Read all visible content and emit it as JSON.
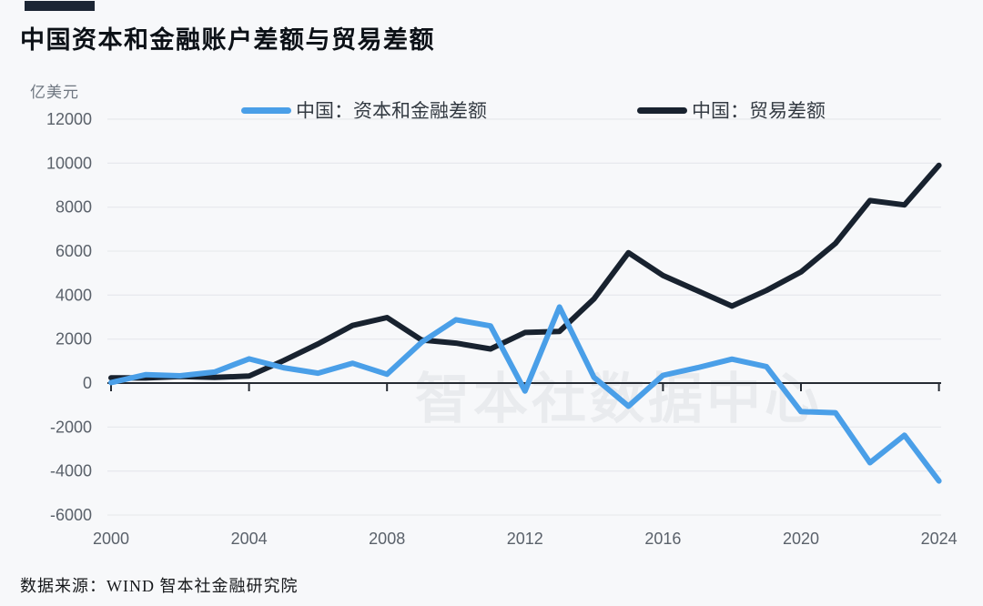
{
  "title": "中国资本和金融账户差额与贸易差额",
  "unit_label": "亿美元",
  "legend": [
    {
      "label": "中国：资本和金融差额",
      "color": "#4a9fe8"
    },
    {
      "label": "中国：贸易差额",
      "color": "#18222f"
    }
  ],
  "watermark": "智本社数据中心",
  "source": "数据来源：WIND 智本社金融研究院",
  "chart_data": {
    "type": "line",
    "title": "中国资本和金融账户差额与贸易差额",
    "xlabel": "",
    "ylabel": "亿美元",
    "ylim": [
      -6000,
      12000
    ],
    "grid": true,
    "legend_position": "top",
    "x": [
      2000,
      2001,
      2002,
      2003,
      2004,
      2005,
      2006,
      2007,
      2008,
      2009,
      2010,
      2011,
      2012,
      2013,
      2014,
      2015,
      2016,
      2017,
      2018,
      2019,
      2020,
      2021,
      2022,
      2023,
      2024
    ],
    "x_ticks": [
      2000,
      2004,
      2008,
      2012,
      2016,
      2020,
      2024
    ],
    "y_ticks": [
      12000,
      10000,
      8000,
      6000,
      4000,
      2000,
      0,
      -2000,
      -4000,
      -6000
    ],
    "series": [
      {
        "name": "中国：资本和金融差额",
        "color": "#4a9fe8",
        "values": [
          20,
          380,
          330,
          500,
          1100,
          700,
          450,
          900,
          400,
          1850,
          2880,
          2600,
          -360,
          3460,
          260,
          -1050,
          350,
          700,
          1090,
          750,
          -1300,
          -1350,
          -3620,
          -2370,
          -4450
        ]
      },
      {
        "name": "中国：贸易差额",
        "color": "#18222f",
        "values": [
          240,
          230,
          300,
          255,
          320,
          1020,
          1780,
          2620,
          2980,
          1960,
          1815,
          1550,
          2300,
          2350,
          3830,
          5930,
          4890,
          4200,
          3500,
          4210,
          5050,
          6350,
          8300,
          8100,
          9900
        ]
      }
    ]
  }
}
